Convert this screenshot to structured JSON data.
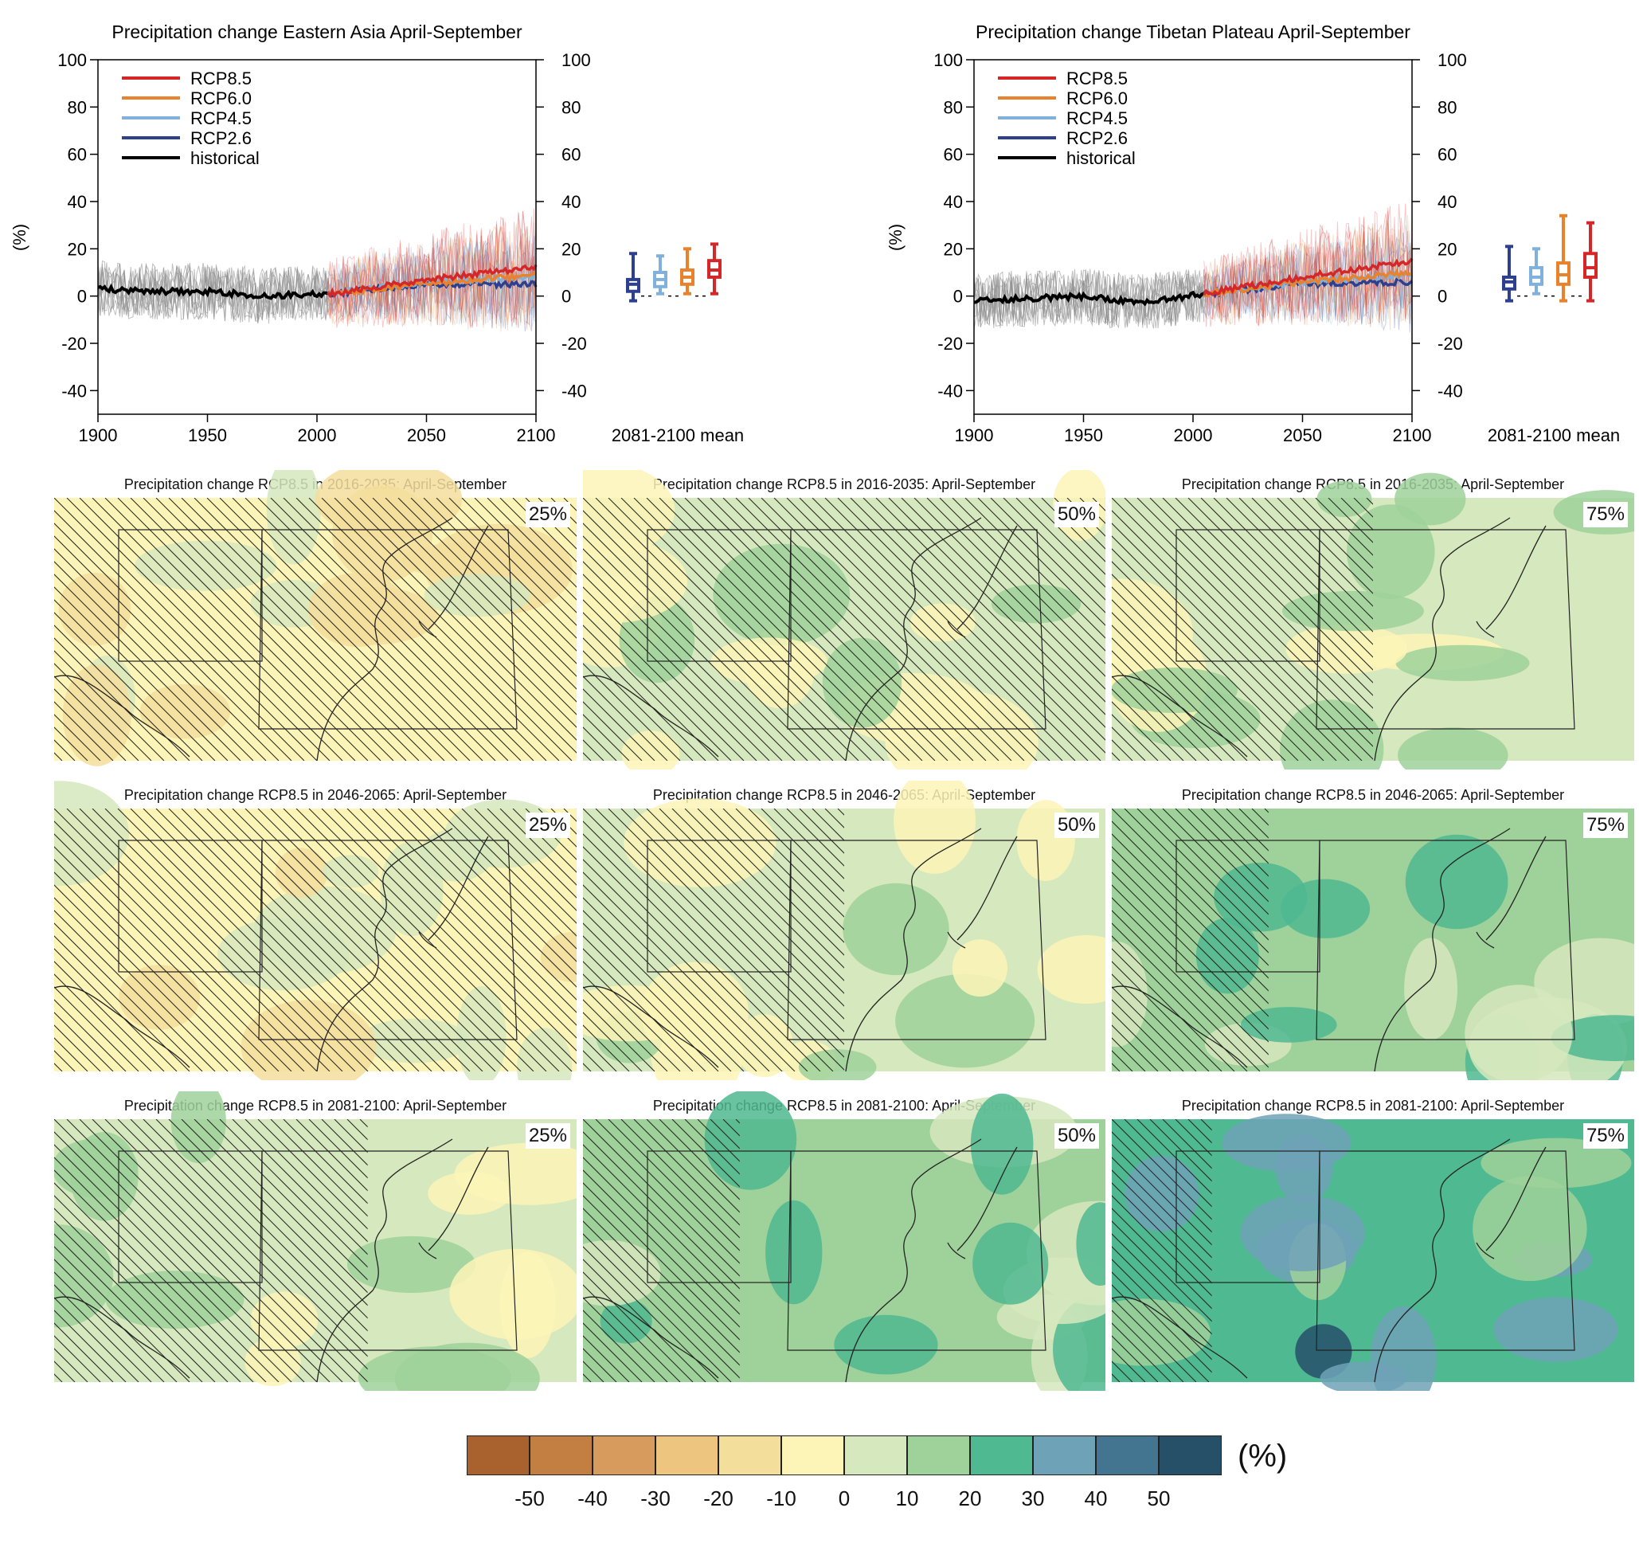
{
  "chart_data": [
    {
      "type": "line",
      "title": "Precipitation change Eastern Asia April-September",
      "ylabel": "(%)",
      "ylim": [
        -50,
        100
      ],
      "xlim": [
        1900,
        2100
      ],
      "x_ticks": [
        "1900",
        "1950",
        "2000",
        "2050",
        "2100"
      ],
      "y_ticks": [
        "100",
        "80",
        "60",
        "40",
        "20",
        "0",
        "-20",
        "-40"
      ],
      "legend": [
        "RCP8.5",
        "RCP6.0",
        "RCP4.5",
        "RCP2.6",
        "historical"
      ],
      "legend_position": "top-left",
      "box_label": "2081-2100 mean",
      "series": [
        {
          "name": "historical",
          "x": [
            1900,
            1925,
            1950,
            1975,
            2005
          ],
          "values": [
            3,
            2,
            2,
            0,
            1
          ]
        },
        {
          "name": "RCP2.6",
          "x": [
            2005,
            2050,
            2100
          ],
          "values": [
            1,
            5,
            5
          ]
        },
        {
          "name": "RCP4.5",
          "x": [
            2005,
            2050,
            2100
          ],
          "values": [
            1,
            6,
            8
          ]
        },
        {
          "name": "RCP6.0",
          "x": [
            2005,
            2050,
            2100
          ],
          "values": [
            1,
            5,
            9
          ]
        },
        {
          "name": "RCP8.5",
          "x": [
            2005,
            2050,
            2100
          ],
          "values": [
            1,
            7,
            12
          ]
        }
      ],
      "boxes": [
        {
          "name": "RCP2.6",
          "min": -2,
          "q1": 2,
          "median": 5,
          "q3": 7,
          "max": 18
        },
        {
          "name": "RCP4.5",
          "min": 1,
          "q1": 4,
          "median": 7,
          "q3": 10,
          "max": 17
        },
        {
          "name": "RCP6.0",
          "min": 1,
          "q1": 5,
          "median": 8,
          "q3": 11,
          "max": 20
        },
        {
          "name": "RCP8.5",
          "min": 1,
          "q1": 8,
          "median": 11,
          "q3": 15,
          "max": 22
        }
      ]
    },
    {
      "type": "line",
      "title": "Precipitation change Tibetan Plateau April-September",
      "ylabel": "(%)",
      "ylim": [
        -50,
        100
      ],
      "xlim": [
        1900,
        2100
      ],
      "x_ticks": [
        "1900",
        "1950",
        "2000",
        "2050",
        "2100"
      ],
      "y_ticks": [
        "100",
        "80",
        "60",
        "40",
        "20",
        "0",
        "-20",
        "-40"
      ],
      "legend": [
        "RCP8.5",
        "RCP6.0",
        "RCP4.5",
        "RCP2.6",
        "historical"
      ],
      "legend_position": "top-left",
      "box_label": "2081-2100 mean",
      "series": [
        {
          "name": "historical",
          "x": [
            1900,
            1925,
            1950,
            1975,
            2005
          ],
          "values": [
            -2,
            -1,
            0,
            -3,
            1
          ]
        },
        {
          "name": "RCP2.6",
          "x": [
            2005,
            2050,
            2100
          ],
          "values": [
            1,
            5,
            6
          ]
        },
        {
          "name": "RCP4.5",
          "x": [
            2005,
            2050,
            2100
          ],
          "values": [
            1,
            6,
            9
          ]
        },
        {
          "name": "RCP6.0",
          "x": [
            2005,
            2050,
            2100
          ],
          "values": [
            1,
            6,
            10
          ]
        },
        {
          "name": "RCP8.5",
          "x": [
            2005,
            2050,
            2100
          ],
          "values": [
            1,
            8,
            15
          ]
        }
      ],
      "boxes": [
        {
          "name": "RCP2.6",
          "min": -2,
          "q1": 3,
          "median": 6,
          "q3": 8,
          "max": 21
        },
        {
          "name": "RCP4.5",
          "min": 1,
          "q1": 5,
          "median": 8,
          "q3": 12,
          "max": 20
        },
        {
          "name": "RCP6.0",
          "min": -2,
          "q1": 5,
          "median": 9,
          "q3": 14,
          "max": 34
        },
        {
          "name": "RCP8.5",
          "min": -2,
          "q1": 8,
          "median": 12,
          "q3": 18,
          "max": 31
        }
      ]
    }
  ],
  "colors": {
    "RCP8.5": "#d62728",
    "RCP6.0": "#e8822d",
    "RCP4.5": "#7fb1dc",
    "RCP2.6": "#2d3f8f",
    "historical": "#000000"
  },
  "maps": [
    {
      "title": "Precipitation change RCP8.5 in 2016-2035: April-September",
      "percentile": "25%"
    },
    {
      "title": "Precipitation change RCP8.5 in 2016-2035: April-September",
      "percentile": "50%"
    },
    {
      "title": "Precipitation change RCP8.5 in 2016-2035: April-September",
      "percentile": "75%"
    },
    {
      "title": "Precipitation change RCP8.5 in 2046-2065: April-September",
      "percentile": "25%"
    },
    {
      "title": "Precipitation change RCP8.5 in 2046-2065: April-September",
      "percentile": "50%"
    },
    {
      "title": "Precipitation change RCP8.5 in 2046-2065: April-September",
      "percentile": "75%"
    },
    {
      "title": "Precipitation change RCP8.5 in 2081-2100: April-September",
      "percentile": "25%"
    },
    {
      "title": "Precipitation change RCP8.5 in 2081-2100: April-September",
      "percentile": "50%"
    },
    {
      "title": "Precipitation change RCP8.5 in 2081-2100: April-September",
      "percentile": "75%"
    }
  ],
  "colorbar": {
    "unit": "(%)",
    "ticks": [
      "-50",
      "-40",
      "-30",
      "-20",
      "-10",
      "0",
      "10",
      "20",
      "30",
      "40",
      "50"
    ],
    "colors": [
      "#a9622d",
      "#c27f41",
      "#d89b5e",
      "#edc57e",
      "#f4de9c",
      "#fdf5b7",
      "#d6e8bd",
      "#9fd19a",
      "#4fb991",
      "#6ea2b7",
      "#437590",
      "#264f68"
    ]
  }
}
